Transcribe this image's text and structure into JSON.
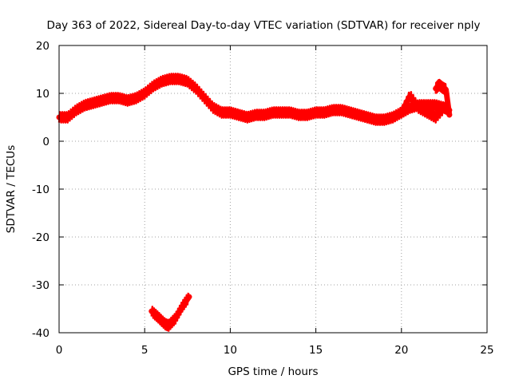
{
  "chart_data": {
    "type": "scatter",
    "title": "Day 363 of 2022, Sidereal Day-to-day VTEC variation (SDTVAR) for receiver nply",
    "xlabel": "GPS time / hours",
    "ylabel": "SDTVAR / TECUs",
    "xlim": [
      0,
      25
    ],
    "ylim": [
      -40,
      20
    ],
    "xticks": [
      0,
      5,
      10,
      15,
      20,
      25
    ],
    "yticks": [
      -40,
      -30,
      -20,
      -10,
      0,
      10,
      20
    ],
    "grid": true,
    "marker": "+",
    "color": "#ff0000",
    "series": [
      {
        "name": "main",
        "x": [
          0.0,
          0.5,
          1.0,
          1.5,
          2.0,
          2.5,
          3.0,
          3.5,
          4.0,
          4.5,
          5.0,
          5.5,
          6.0,
          6.5,
          7.0,
          7.5,
          8.0,
          8.5,
          9.0,
          9.5,
          10.0,
          10.5,
          11.0,
          11.5,
          12.0,
          12.5,
          13.0,
          13.5,
          14.0,
          14.5,
          15.0,
          15.5,
          16.0,
          16.5,
          17.0,
          17.5,
          18.0,
          18.5,
          19.0,
          19.5,
          20.0,
          20.5,
          21.0,
          21.5,
          22.0,
          22.5,
          22.8
        ],
        "y": [
          5.0,
          5.0,
          6.5,
          7.5,
          8.0,
          8.5,
          9.0,
          9.0,
          8.5,
          9.0,
          10.0,
          11.5,
          12.5,
          13.0,
          13.0,
          12.5,
          11.0,
          9.0,
          7.0,
          6.0,
          6.0,
          5.5,
          5.0,
          5.5,
          5.5,
          6.0,
          6.0,
          6.0,
          5.5,
          5.5,
          6.0,
          6.0,
          6.5,
          6.5,
          6.0,
          5.5,
          5.0,
          4.5,
          4.5,
          5.0,
          6.0,
          7.0,
          7.5,
          7.5,
          7.5,
          7.0,
          6.5
        ]
      },
      {
        "name": "branch",
        "x": [
          20.0,
          20.5,
          21.0,
          21.5,
          22.0,
          22.5
        ],
        "y": [
          6.0,
          9.5,
          7.0,
          6.0,
          5.0,
          7.0
        ]
      },
      {
        "name": "isolated",
        "x": [
          22.0,
          22.2,
          22.4,
          22.6,
          22.8
        ],
        "y": [
          11.0,
          11.8,
          11.2,
          10.8,
          5.5
        ]
      },
      {
        "name": "dip",
        "x": [
          5.4,
          5.8,
          6.2,
          6.4,
          6.8,
          7.2,
          7.6
        ],
        "y": [
          -35.5,
          -36.8,
          -38.2,
          -38.5,
          -37.0,
          -34.5,
          -32.5
        ]
      }
    ]
  }
}
